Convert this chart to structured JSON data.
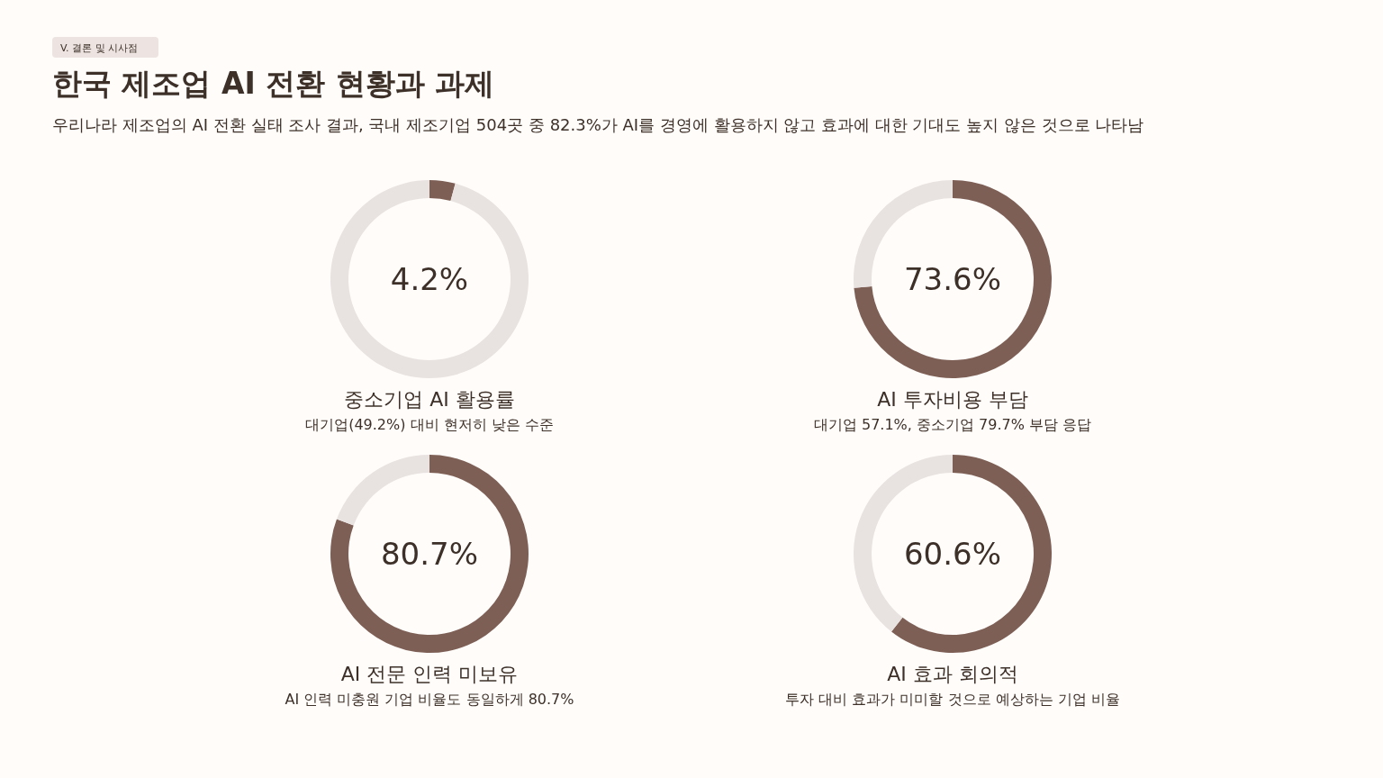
{
  "chart_data": [
    {
      "type": "donut",
      "title": "중소기업 AI 활용률",
      "subtitle": "대기업(49.2%) 대비 현저히 낮은 수준",
      "categories": [
        null,
        null
      ],
      "values": [
        4.2,
        95.8
      ],
      "colors": [
        "#7d5f55",
        "#e8e2e1"
      ],
      "annotations": [
        "4.2%",
        "V. 결론 및 시사점",
        "한국 제조업 AI 전환 현황과 과제",
        "우리나라 제조업의 AI 전환 실태 조사 결과, 국내 제조기업 504곳 중 82.3%가 AI를 경영에 활용하지 않고 효과에 대한 기대도 높지 않은 것으로 나타남"
      ]
    },
    {
      "type": "donut",
      "title": "AI 투자비용 부담",
      "subtitle": "대기업 57.1%, 중소기업 79.7% 부담 응답",
      "categories": [
        null,
        null
      ],
      "values": [
        73.6,
        26.4
      ],
      "colors": [
        "#7d5f55",
        "#e8e2e1"
      ],
      "annotations": [
        "73.6%"
      ]
    },
    {
      "type": "donut",
      "title": "AI 전문 인력 미보유",
      "subtitle": "AI 인력 미충원 기업 비율도 동일하게 80.7%",
      "categories": [
        null,
        null
      ],
      "values": [
        80.7,
        19.3
      ],
      "colors": [
        "#7d5f55",
        "#e8e2e1"
      ],
      "annotations": [
        "80.7%"
      ]
    },
    {
      "type": "donut",
      "title": "AI 효과 회의적",
      "subtitle": "투자 대비 효과가 미미할 것으로 예상하는 기업 비율",
      "categories": [
        null,
        null
      ],
      "values": [
        60.6,
        39.4
      ],
      "colors": [
        "#7d5f55",
        "#e8e2e1"
      ],
      "annotations": [
        "60.6%"
      ]
    }
  ]
}
